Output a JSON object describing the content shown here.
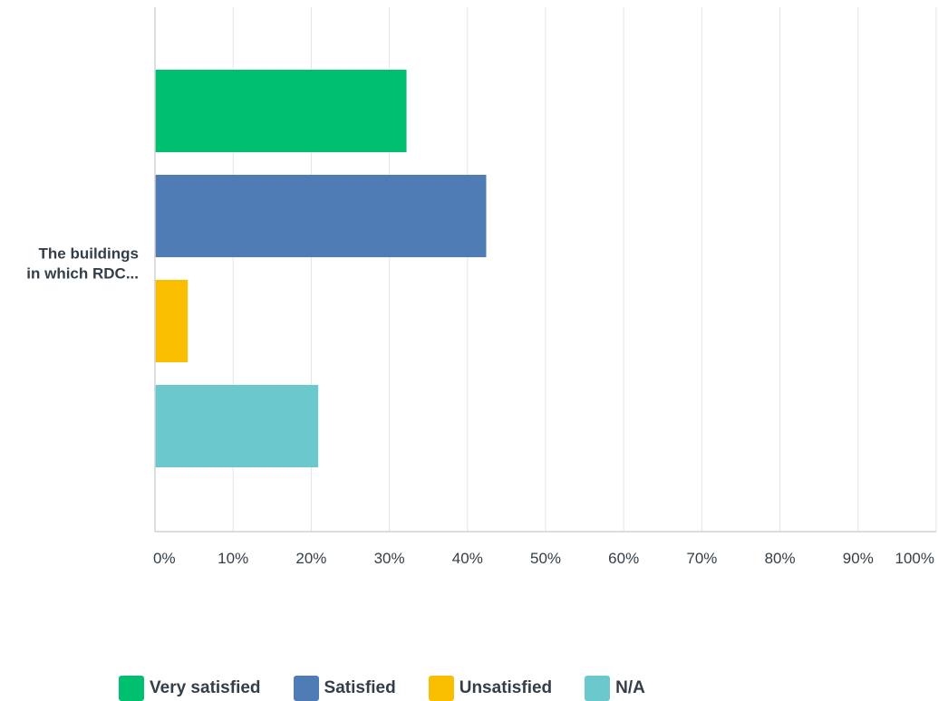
{
  "chart_data": {
    "type": "bar",
    "orientation": "horizontal",
    "categories": [
      "The buildings in which RDC..."
    ],
    "category_label_lines": [
      "The buildings",
      "in which RDC..."
    ],
    "series": [
      {
        "name": "Very satisfied",
        "color": "#00bf6f",
        "values": [
          32.2
        ]
      },
      {
        "name": "Satisfied",
        "color": "#507cb6",
        "values": [
          42.4
        ]
      },
      {
        "name": "Unsatisfied",
        "color": "#f9be00",
        "values": [
          4.2
        ]
      },
      {
        "name": "N/A",
        "color": "#6bc8cd",
        "values": [
          20.9
        ]
      }
    ],
    "xlim": [
      0,
      100
    ],
    "xticks": [
      "0%",
      "10%",
      "20%",
      "30%",
      "40%",
      "50%",
      "60%",
      "70%",
      "80%",
      "90%",
      "100%"
    ],
    "grid": true,
    "legend_position": "bottom",
    "title": "",
    "xlabel": "",
    "ylabel": ""
  }
}
